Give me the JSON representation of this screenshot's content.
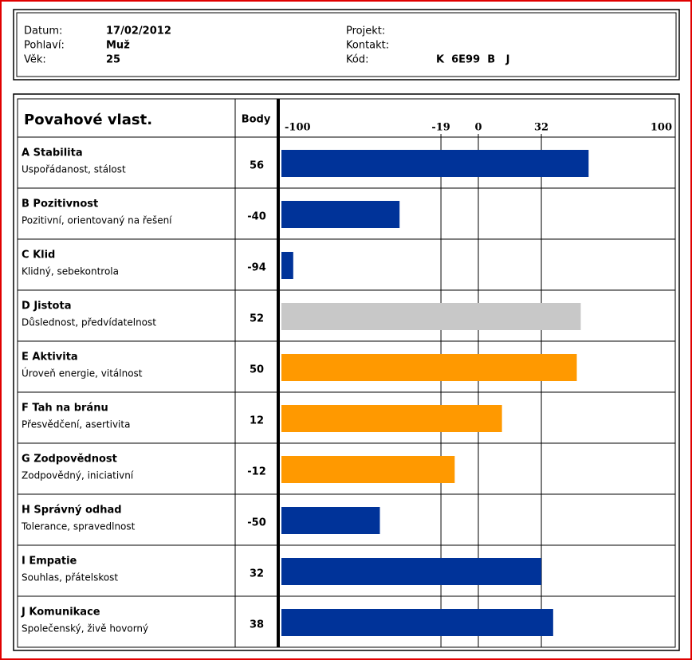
{
  "header": {
    "fields": [
      {
        "label": "Datum:",
        "value": "17/02/2012"
      },
      {
        "label": "Pohlaví:",
        "value": "Muž"
      },
      {
        "label": "Věk:",
        "value": "25"
      },
      {
        "label": "Projekt:"
      },
      {
        "label": "Kontakt:"
      },
      {
        "label": "Kód:",
        "value": "K  6E99  B   J"
      }
    ]
  },
  "chart_data": {
    "type": "bar",
    "orientation": "horizontal",
    "title": "Povahové vlast.",
    "value_header": "Body",
    "categories": [
      "A Stabilita",
      "B Pozitivnost",
      "C Klid",
      "D Jistota",
      "E Aktivita",
      "F Tah na bránu",
      "G Zodpovědnost",
      "H Správný odhad",
      "I Empatie",
      "J Komunikace"
    ],
    "descriptions": [
      "Uspořádanost, stálost",
      "Pozitivní, orientovaný na řešení",
      "Klidný, sebekontrola",
      "Důslednost, předvídatelnost",
      "Úroveň energie, vitálnost",
      "Přesvědčení, asertivita",
      "Zodpovědný, iniciativní",
      "Tolerance, spravedlnost",
      "Souhlas, přátelskost",
      "Společenský, živě hovorný"
    ],
    "values": [
      56,
      -40,
      -94,
      52,
      50,
      12,
      -12,
      -50,
      32,
      38
    ],
    "colors": [
      "#003399",
      "#003399",
      "#003399",
      "#c8c8c8",
      "#ff9900",
      "#ff9900",
      "#ff9900",
      "#003399",
      "#003399",
      "#003399"
    ],
    "xlim": [
      -100,
      100
    ],
    "xticks": [
      -100,
      -19,
      0,
      32,
      100
    ],
    "grid": true
  }
}
